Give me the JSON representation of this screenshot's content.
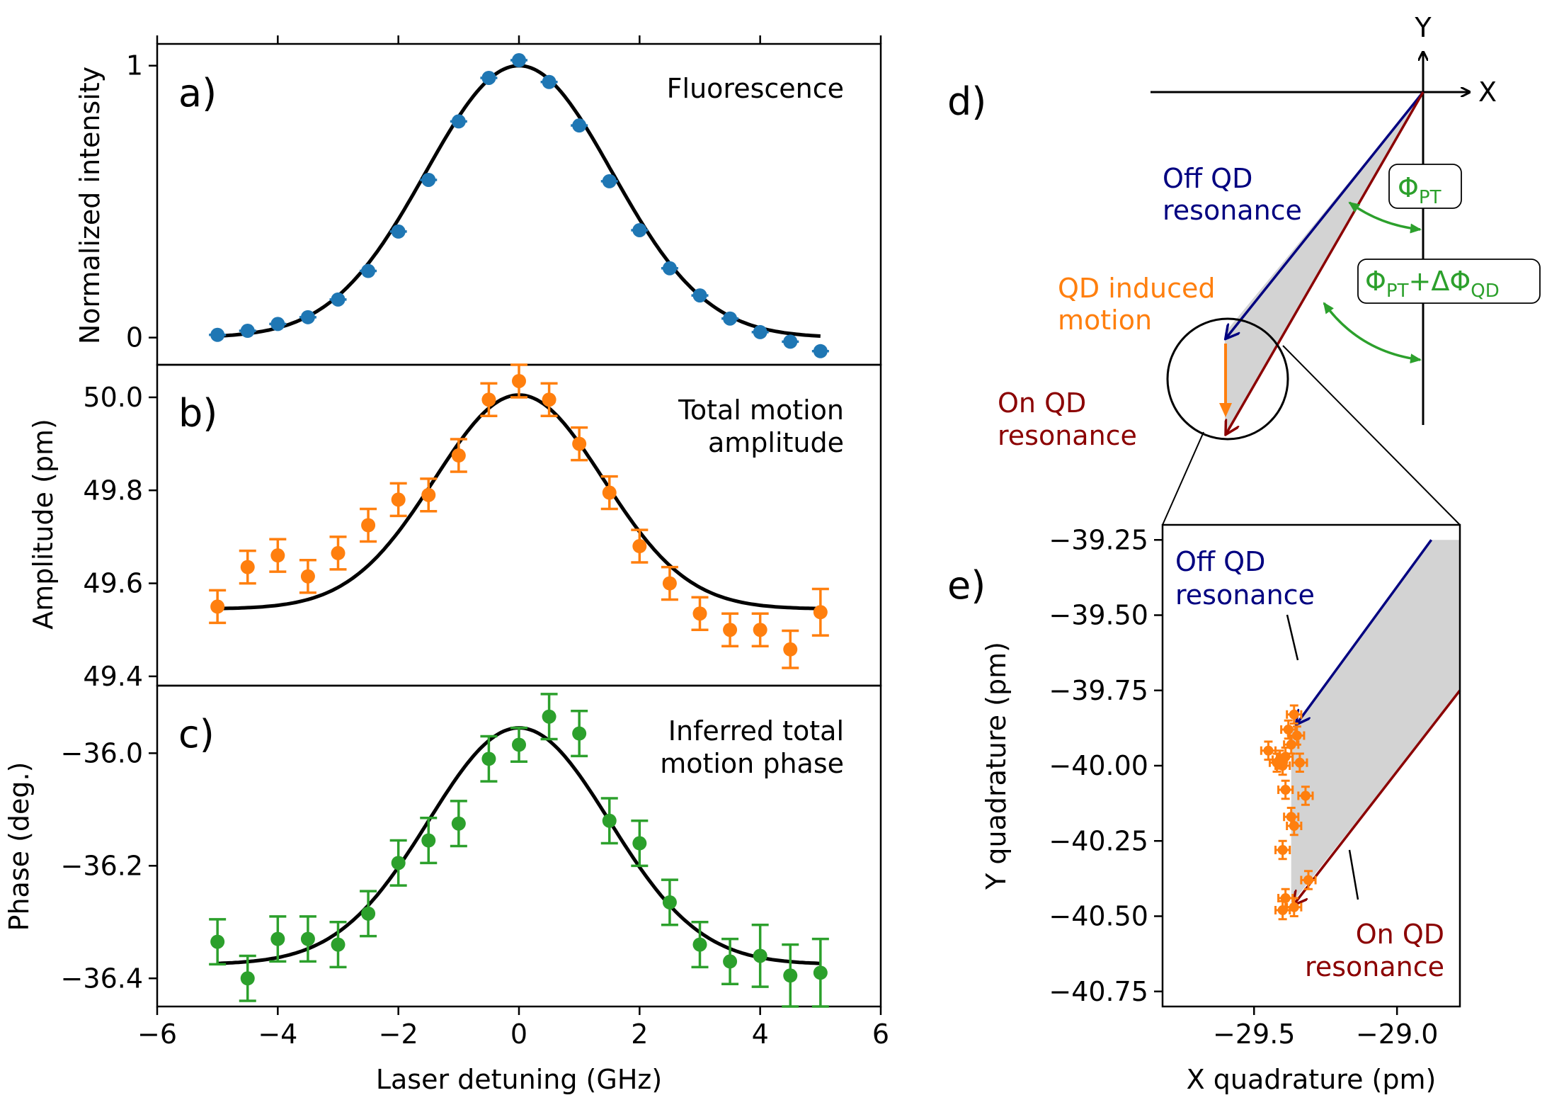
{
  "colors": {
    "fluorescence": "#1f77b4",
    "amplitude": "#ff7f0e",
    "phase": "#2ca02c",
    "off_resonance": "#000080",
    "on_resonance": "#8b0000",
    "qd_motion": "#ff7f0e",
    "phi": "#2ca02c",
    "shade": "#d3d3d3"
  },
  "chart_data": [
    {
      "type": "scatter",
      "panel": "a)",
      "title": "Fluorescence",
      "ylabel": "Normalized intensity",
      "xlim": [
        -6,
        6
      ],
      "ylim": [
        -0.1,
        1.08
      ],
      "yticks": [
        0,
        1
      ],
      "ytick_labels": [
        "0",
        "1"
      ],
      "x": [
        -5,
        -4.5,
        -4,
        -3.5,
        -3,
        -2.5,
        -2,
        -1.5,
        -1,
        -0.5,
        0,
        0.5,
        1,
        1.5,
        2,
        2.5,
        3,
        3.5,
        4,
        4.5,
        5
      ],
      "y": [
        0.01,
        0.025,
        0.05,
        0.075,
        0.14,
        0.245,
        0.39,
        0.58,
        0.795,
        0.955,
        1.02,
        0.94,
        0.78,
        0.575,
        0.395,
        0.255,
        0.155,
        0.07,
        0.02,
        -0.015,
        -0.05
      ],
      "fit": {
        "model": "gaussian",
        "amplitude": 1.0,
        "center": 0,
        "sigma": 1.55,
        "offset": 0
      }
    },
    {
      "type": "scatter",
      "panel": "b)",
      "title_lines": [
        "Total motion",
        "amplitude"
      ],
      "ylabel": "Amplitude (pm)",
      "xlim": [
        -6,
        6
      ],
      "ylim": [
        49.38,
        50.07
      ],
      "yticks": [
        49.4,
        49.6,
        49.8,
        50.0
      ],
      "ytick_labels": [
        "49.4",
        "49.6",
        "49.8",
        "50.0"
      ],
      "x": [
        -5,
        -4.5,
        -4,
        -3.5,
        -3,
        -2.5,
        -2,
        -1.5,
        -1,
        -0.5,
        0,
        0.5,
        1,
        1.5,
        2,
        2.5,
        3,
        3.5,
        4,
        4.5,
        5
      ],
      "y": [
        49.55,
        49.635,
        49.66,
        49.615,
        49.665,
        49.725,
        49.78,
        49.79,
        49.875,
        49.995,
        50.035,
        49.995,
        49.9,
        49.795,
        49.68,
        49.6,
        49.535,
        49.5,
        49.5,
        49.458,
        49.538
      ],
      "yerr": [
        0.035,
        0.035,
        0.035,
        0.035,
        0.035,
        0.035,
        0.035,
        0.035,
        0.035,
        0.035,
        0.035,
        0.035,
        0.035,
        0.035,
        0.035,
        0.035,
        0.035,
        0.035,
        0.035,
        0.04,
        0.05
      ],
      "fit": {
        "model": "gaussian",
        "amplitude": 0.46,
        "center": 0,
        "sigma": 1.4,
        "offset": 49.545
      }
    },
    {
      "type": "scatter",
      "panel": "c)",
      "title_lines": [
        "Inferred total",
        "motion phase"
      ],
      "ylabel": "Phase (deg.)",
      "xlabel": "Laser detuning (GHz)",
      "xlim": [
        -6,
        6
      ],
      "xticks": [
        -6,
        -4,
        -2,
        0,
        2,
        4,
        6
      ],
      "xtick_labels": [
        "−6",
        "−4",
        "−2",
        "0",
        "2",
        "4",
        "6"
      ],
      "ylim": [
        -36.45,
        -35.88
      ],
      "yticks": [
        -36.4,
        -36.2,
        -36.0
      ],
      "ytick_labels": [
        "−36.4",
        "−36.2",
        "−36.0"
      ],
      "x": [
        -5,
        -4.5,
        -4,
        -3.5,
        -3,
        -2.5,
        -2,
        -1.5,
        -1,
        -0.5,
        0,
        0.5,
        1,
        1.5,
        2,
        2.5,
        3,
        3.5,
        4,
        4.5,
        5
      ],
      "y": [
        -36.335,
        -36.4,
        -36.33,
        -36.33,
        -36.34,
        -36.285,
        -36.195,
        -36.155,
        -36.125,
        -36.01,
        -35.985,
        -35.935,
        -35.965,
        -36.12,
        -36.16,
        -36.265,
        -36.34,
        -36.37,
        -36.36,
        -36.395,
        -36.39
      ],
      "yerr": [
        0.04,
        0.04,
        0.04,
        0.04,
        0.04,
        0.04,
        0.04,
        0.04,
        0.04,
        0.04,
        0.03,
        0.04,
        0.04,
        0.04,
        0.04,
        0.04,
        0.04,
        0.04,
        0.055,
        0.055,
        0.06
      ],
      "fit": {
        "model": "gaussian",
        "amplitude": 0.42,
        "center": 0,
        "sigma": 1.5,
        "offset": -36.375
      }
    },
    {
      "type": "diagram",
      "panel": "d)",
      "x_axis_label": "X",
      "y_axis_label": "Y",
      "labels": {
        "off": [
          "Off QD",
          "resonance"
        ],
        "qd": [
          "QD induced",
          "motion"
        ],
        "on": [
          "On QD",
          "resonance"
        ],
        "phi_pt": {
          "base": "Φ",
          "sub": "PT"
        },
        "phi_total": {
          "base": "Φ",
          "sub1": "PT",
          "mid": "+ΔΦ",
          "sub2": "QD"
        }
      }
    },
    {
      "type": "scatter",
      "panel": "e)",
      "xlabel": "X quadrature (pm)",
      "ylabel": "Y quadrature (pm)",
      "xlim": [
        -29.82,
        -28.78
      ],
      "ylim": [
        -40.8,
        -39.2
      ],
      "xticks": [
        -29.5,
        -29.0
      ],
      "xtick_labels": [
        "−29.5",
        "−29.0"
      ],
      "yticks": [
        -39.25,
        -39.5,
        -39.75,
        -40.0,
        -40.25,
        -40.5,
        -40.75
      ],
      "ytick_labels": [
        "−39.25",
        "−39.50",
        "−39.75",
        "−40.00",
        "−40.25",
        "−40.50",
        "−40.75"
      ],
      "x": [
        -29.36,
        -29.38,
        -29.35,
        -29.37,
        -29.45,
        -29.42,
        -29.4,
        -29.41,
        -29.39,
        -29.34,
        -29.32,
        -29.39,
        -29.37,
        -29.36,
        -29.4,
        -29.31,
        -29.39,
        -29.36,
        -29.4
      ],
      "y": [
        -39.83,
        -39.88,
        -39.9,
        -39.93,
        -39.95,
        -39.99,
        -40.0,
        -39.98,
        -39.97,
        -39.99,
        -40.1,
        -40.08,
        -40.17,
        -40.2,
        -40.28,
        -40.38,
        -40.44,
        -40.47,
        -40.48
      ],
      "xerr": 0.025,
      "yerr": 0.03,
      "off_vector": {
        "x_start": -28.88,
        "y_start": -39.25,
        "x_end": -29.35,
        "y_end": -39.86
      },
      "on_vector": {
        "x_start": -28.78,
        "y_start": -39.75,
        "x_end": -29.36,
        "y_end": -40.46
      },
      "labels": {
        "off": [
          "Off QD",
          "resonance"
        ],
        "on": [
          "On QD",
          "resonance"
        ]
      }
    }
  ]
}
